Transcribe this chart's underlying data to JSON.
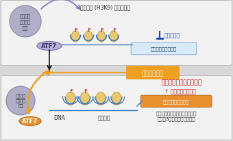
{
  "bg_color": "#d8d8d8",
  "panel_color": "#f2f2f2",
  "panel_edge": "#bbbbbb",
  "top_enzyme_label": "ヒストン\nメチル化\n酵素",
  "atf7_top_label": "ATF7",
  "histone_methyl_label": "ヒストン (H3K9) のメチル化",
  "suppress_label": "発現の抑制",
  "immune_gene_top": "自然免疫関連遣伝子",
  "stress_label": "感染ストレス",
  "bot_enzyme_label": "ヒストン\nメチル化\n酵素",
  "atf7_bot_label": "ATF7",
  "dna_label": "DNA",
  "histone_label": "ヒストン",
  "epigenetic_label": "エピジェネティック記憶",
  "expr_up_label": "↑ 発現レベルの上昇",
  "immune_gene_bot": "自然免疫関連遣伝子",
  "stress_note_1": "ストレスがなくなっても、この",
  "stress_note_2": "状態が3週間以上維持される",
  "orange": "#f0a020",
  "blue": "#4a88c8",
  "purple": "#8878cc",
  "gray_circle": "#b0aec8",
  "gray_circle_edge": "#888899",
  "atf7_top_fill": "#b8b0d8",
  "atf7_top_edge": "#8070b8",
  "atf7_bot_fill": "#e89030",
  "atf7_bot_edge": "#c07020",
  "nuc_fill": "#e8c870",
  "nuc_edge": "#c8a840",
  "red_flag": "#dd2222",
  "suppress_blue": "#2244aa",
  "immune_top_fill": "#d8eaf8",
  "immune_top_edge": "#88aad8",
  "immune_bot_fill": "#e89030",
  "black": "#111111"
}
